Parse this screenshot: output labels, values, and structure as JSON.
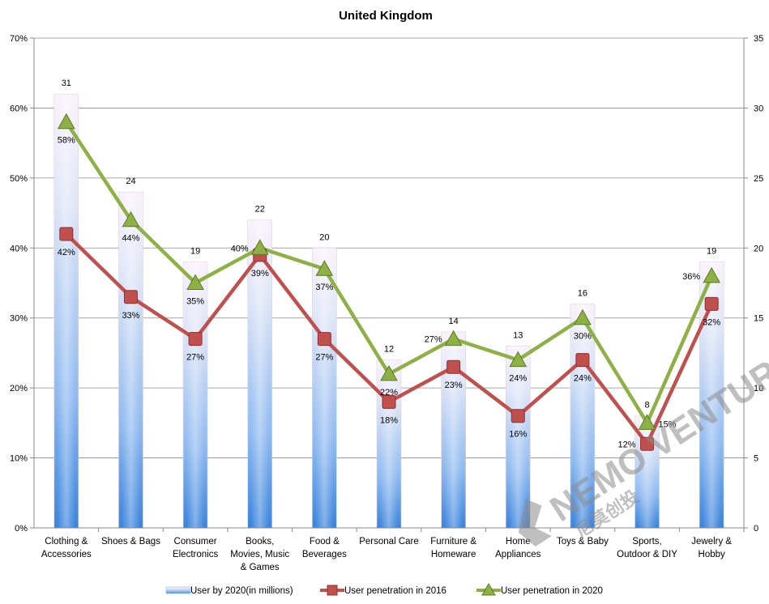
{
  "chart_data": {
    "type": "bar+line",
    "title": "United Kingdom",
    "categories": [
      [
        "Clothing &",
        "Accessories"
      ],
      [
        "Shoes & Bags"
      ],
      [
        "Consumer",
        "Electronics"
      ],
      [
        "Books,",
        "Movies, Music",
        "& Games"
      ],
      [
        "Food &",
        "Beverages"
      ],
      [
        "Personal Care"
      ],
      [
        "Furniture &",
        "Homeware"
      ],
      [
        "Home",
        "Appliances"
      ],
      [
        "Toys & Baby"
      ],
      [
        "Sports,",
        "Outdoor & DIY"
      ],
      [
        "Jewelry &",
        "Hobby"
      ]
    ],
    "y_left": {
      "min": 0,
      "max": 70,
      "step": 10,
      "format": "percent",
      "ticks": [
        "0%",
        "10%",
        "20%",
        "30%",
        "40%",
        "50%",
        "60%",
        "70%"
      ]
    },
    "y_right": {
      "min": 0,
      "max": 35,
      "step": 5,
      "ticks": [
        "0",
        "5",
        "10",
        "15",
        "20",
        "25",
        "30",
        "35"
      ]
    },
    "series": [
      {
        "name": "User by 2020(in millions)",
        "type": "bar",
        "axis": "right",
        "values": [
          31,
          24,
          19,
          22,
          20,
          12,
          14,
          13,
          16,
          8,
          19
        ],
        "labels": [
          "31",
          "24",
          "19",
          "22",
          "20",
          "12",
          "14",
          "13",
          "16",
          "8",
          "19"
        ]
      },
      {
        "name": "User penetration in 2016",
        "type": "line",
        "axis": "left",
        "color": "#c0504d",
        "marker": "square",
        "values": [
          42,
          33,
          27,
          39,
          27,
          18,
          23,
          16,
          24,
          12,
          32
        ],
        "labels": [
          "42%",
          "33%",
          "27%",
          "39%",
          "27%",
          "18%",
          "23%",
          "16%",
          "24%",
          "12%",
          "32%"
        ]
      },
      {
        "name": "User penetration in 2020",
        "type": "line",
        "axis": "left",
        "color": "#8db145",
        "marker": "triangle",
        "values": [
          58,
          44,
          35,
          40,
          37,
          22,
          27,
          24,
          30,
          15,
          36
        ],
        "labels": [
          "58%",
          "44%",
          "35%",
          "40%",
          "37%",
          "22%",
          "27%",
          "24%",
          "30%",
          "15%",
          "36%"
        ]
      }
    ],
    "legend_position": "bottom",
    "grid": true
  },
  "watermark": {
    "brand": "NEMO VENTURES",
    "cn": "尼莫创投"
  },
  "colors": {
    "bar_top": "#f4eef8",
    "bar_bottom": "#3f85d8",
    "line2016": "#c0504d",
    "line2020": "#8db145",
    "grid": "#8c8c8c"
  }
}
